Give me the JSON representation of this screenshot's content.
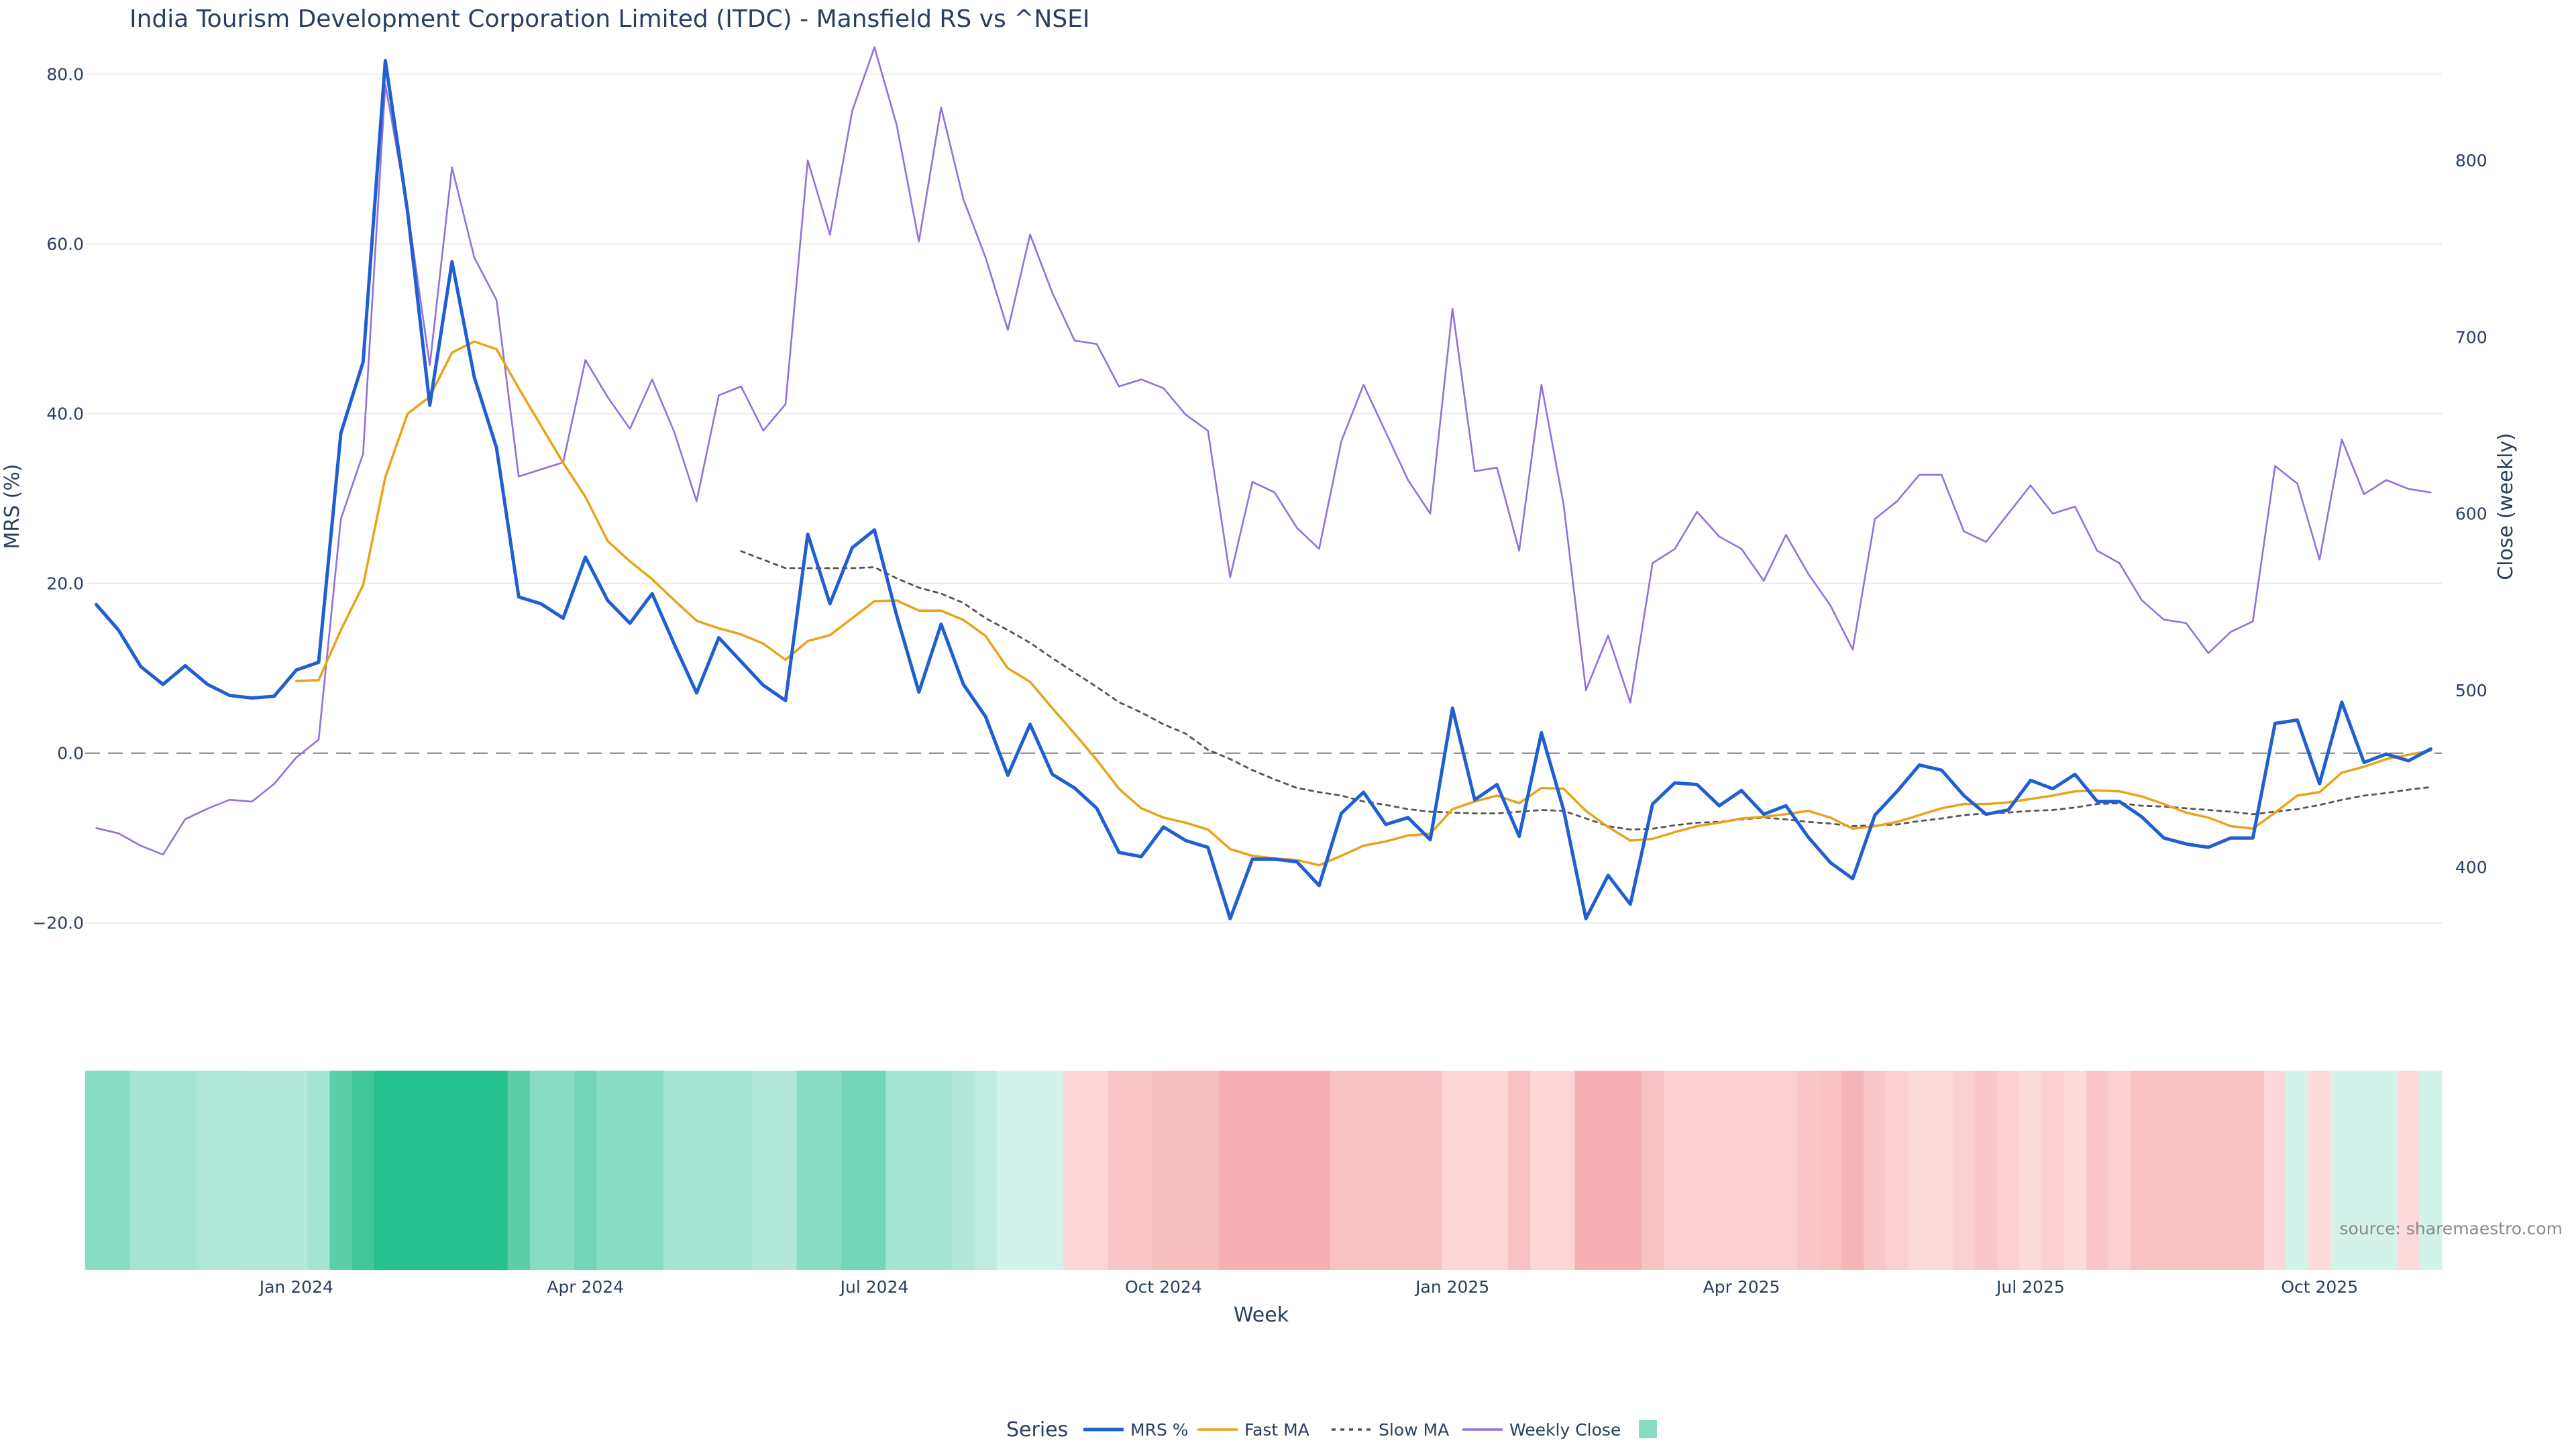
{
  "chart_data": {
    "type": "line",
    "title": "India Tourism Development Corporation Limited (ITDC) - Mansfield RS vs ^NSEI",
    "xlabel": "Week",
    "ylabel": "MRS (%)",
    "y2label": "Close (weekly)",
    "source": "source: sharemaestro.com",
    "ylim": [
      -23.5,
      84.0
    ],
    "y2lim": [
      351.5,
      868.0
    ],
    "y_ticks": [
      80.0,
      60.0,
      40.0,
      20.0,
      0.0,
      -20.0
    ],
    "y_tick_labels": [
      "80.0",
      "60.0",
      "40.0",
      "20.0",
      "0.0",
      "−20.0"
    ],
    "y2_ticks": [
      800,
      700,
      600,
      500,
      400
    ],
    "y2_tick_labels": [
      "800",
      "700",
      "600",
      "500",
      "400"
    ],
    "x_ticks": [
      9,
      22,
      35,
      48,
      61,
      74,
      87,
      100
    ],
    "x_tick_labels": [
      "Jan 2024",
      "Apr 2024",
      "Jul 2024",
      "Oct 2024",
      "Jan 2025",
      "Apr 2025",
      "Jul 2025",
      "Oct 2025"
    ],
    "zero_line": 0,
    "legend_title": "Series",
    "legend_position": "bottom-center",
    "grid": true,
    "series": [
      {
        "name": "MRS %",
        "axis": "left",
        "color": "#1f5fd1",
        "dash": "solid",
        "values": [
          17.5,
          14.5,
          10.2,
          8.1,
          10.3,
          8.1,
          6.8,
          6.5,
          6.7,
          9.8,
          10.7,
          37.7,
          46.1,
          81.6,
          63.8,
          41.0,
          57.9,
          44.3,
          36.0,
          18.4,
          17.6,
          15.9,
          23.1,
          18.0,
          15.3,
          18.8,
          12.8,
          7.1,
          13.6,
          10.8,
          8.0,
          6.2,
          25.8,
          17.6,
          24.2,
          26.3,
          16.2,
          7.2,
          15.2,
          8.1,
          4.3,
          -2.6,
          3.4,
          -2.5,
          -4.1,
          -6.5,
          -11.7,
          -12.2,
          -8.7,
          -10.3,
          -11.1,
          -19.5,
          -12.5,
          -12.5,
          -12.8,
          -15.6,
          -7.1,
          -4.6,
          -8.4,
          -7.6,
          -10.2,
          5.3,
          -5.5,
          -3.7,
          -9.8,
          2.4,
          -6.7,
          -19.5,
          -14.4,
          -17.8,
          -6.0,
          -3.5,
          -3.7,
          -6.2,
          -4.4,
          -7.2,
          -6.2,
          -9.9,
          -12.9,
          -14.8,
          -7.3,
          -4.5,
          -1.4,
          -2.0,
          -5.0,
          -7.2,
          -6.7,
          -3.2,
          -4.2,
          -2.5,
          -5.7,
          -5.7,
          -7.5,
          -10.0,
          -10.7,
          -11.1,
          -10.0,
          -10.0,
          3.5,
          3.9,
          -3.6,
          6.0,
          -1.1,
          -0.1,
          -0.9,
          0.5
        ]
      },
      {
        "name": "Fast MA",
        "axis": "left",
        "color": "#e8a317",
        "dash": "solid",
        "values": [
          null,
          null,
          null,
          null,
          null,
          null,
          null,
          null,
          null,
          8.5,
          8.6,
          14.5,
          19.8,
          32.5,
          40.0,
          42.0,
          47.2,
          48.5,
          47.6,
          43.0,
          38.6,
          34.2,
          30.2,
          25.0,
          22.6,
          20.5,
          18.0,
          15.6,
          14.7,
          14.0,
          12.9,
          11.0,
          13.2,
          13.9,
          15.9,
          17.9,
          18.0,
          16.8,
          16.8,
          15.7,
          13.8,
          10.0,
          8.4,
          5.3,
          2.3,
          -0.8,
          -4.2,
          -6.5,
          -7.6,
          -8.2,
          -9.0,
          -11.3,
          -12.1,
          -12.4,
          -12.6,
          -13.2,
          -12.1,
          -10.9,
          -10.4,
          -9.7,
          -9.5,
          -6.6,
          -5.7,
          -5.0,
          -5.9,
          -4.1,
          -4.2,
          -6.8,
          -8.7,
          -10.3,
          -10.1,
          -9.3,
          -8.6,
          -8.2,
          -7.7,
          -7.5,
          -7.2,
          -6.8,
          -7.6,
          -8.9,
          -8.6,
          -8.1,
          -7.3,
          -6.5,
          -6.0,
          -6.0,
          -5.8,
          -5.4,
          -5.0,
          -4.5,
          -4.4,
          -4.5,
          -5.1,
          -6.0,
          -7.0,
          -7.6,
          -8.6,
          -8.9,
          -7.0,
          -5.0,
          -4.6,
          -2.3,
          -1.6,
          -0.7,
          -0.2,
          0.3
        ]
      },
      {
        "name": "Slow MA",
        "axis": "left",
        "color": "#555555",
        "dash": "dot",
        "values": [
          null,
          null,
          null,
          null,
          null,
          null,
          null,
          null,
          null,
          null,
          null,
          null,
          null,
          null,
          null,
          null,
          null,
          null,
          null,
          null,
          null,
          null,
          null,
          null,
          null,
          null,
          null,
          null,
          null,
          23.8,
          22.8,
          21.8,
          21.8,
          21.8,
          21.8,
          21.9,
          20.6,
          19.5,
          18.8,
          17.7,
          15.9,
          14.5,
          13.0,
          11.2,
          9.5,
          7.8,
          6.0,
          4.8,
          3.4,
          2.3,
          0.4,
          -0.7,
          -2.0,
          -3.1,
          -4.1,
          -4.6,
          -5.0,
          -5.7,
          -6.1,
          -6.6,
          -6.9,
          -7.0,
          -7.1,
          -7.1,
          -6.9,
          -6.7,
          -6.8,
          -7.7,
          -8.6,
          -9.0,
          -8.9,
          -8.5,
          -8.2,
          -8.1,
          -7.8,
          -7.6,
          -7.8,
          -8.1,
          -8.3,
          -8.6,
          -8.5,
          -8.4,
          -8.0,
          -7.7,
          -7.3,
          -7.1,
          -7.0,
          -6.8,
          -6.7,
          -6.4,
          -6.0,
          -5.9,
          -6.2,
          -6.3,
          -6.5,
          -6.7,
          -6.9,
          -7.2,
          -6.9,
          -6.6,
          -6.1,
          -5.5,
          -5.0,
          -4.7,
          -4.3,
          -4.0
        ]
      },
      {
        "name": "Weekly Close",
        "axis": "right",
        "color": "#9370db",
        "dash": "solid",
        "values": [
          422,
          419,
          412,
          407,
          427,
          433,
          438,
          437,
          447,
          462,
          472,
          597,
          634,
          843,
          772,
          684,
          796,
          745,
          721,
          621,
          625,
          629,
          687,
          666,
          648,
          676,
          646,
          607,
          667,
          672,
          647,
          662,
          800,
          758,
          828,
          864,
          820,
          754,
          830,
          778,
          745,
          704,
          758,
          725,
          698,
          696,
          672,
          676,
          671,
          656,
          647,
          564,
          618,
          612,
          592,
          580,
          641,
          673,
          646,
          619,
          600,
          716,
          624,
          626,
          579,
          673,
          605,
          500,
          531,
          493,
          572,
          580,
          601,
          587,
          580,
          562,
          588,
          566,
          548,
          523,
          597,
          607,
          622,
          622,
          590,
          584,
          600,
          616,
          600,
          604,
          579,
          572,
          551,
          540,
          538,
          521,
          533,
          539,
          627,
          617,
          574,
          642,
          611,
          619,
          614,
          612
        ]
      }
    ],
    "heatmap": {
      "colors": [
        "#88dcc4",
        "#88dcc4",
        "#a4e4d2",
        "#a4e4d2",
        "#a4e4d2",
        "#aee7d7",
        "#aee7d7",
        "#b4e9da",
        "#b4e9da",
        "#b4e9da",
        "#a4e4d2",
        "#5dcfa8",
        "#3fc89a",
        "#26c18e",
        "#26c18e",
        "#26c18e",
        "#26c18e",
        "#26c18e",
        "#26c18e",
        "#5dcfa8",
        "#88dcc4",
        "#88dcc4",
        "#72d5b6",
        "#88dcc4",
        "#88dcc4",
        "#88dcc4",
        "#a4e4d2",
        "#a4e4d2",
        "#a4e4d2",
        "#a4e4d2",
        "#b4e9da",
        "#b4e9da",
        "#88dcc4",
        "#88dcc4",
        "#72d5b6",
        "#72d5b6",
        "#a4e4d2",
        "#a4e4d2",
        "#a4e4d2",
        "#b4e9da",
        "#bfece0",
        "#d3f3ea",
        "#d3f3ea",
        "#d3f3ea",
        "#fcd6d6",
        "#fcd6d6",
        "#f9c7c9",
        "#f9c7c9",
        "#f7bec0",
        "#f7bec0",
        "#f7bec0",
        "#f6b0b4",
        "#f6b0b4",
        "#f6b0b4",
        "#f6b0b4",
        "#f6b0b4",
        "#f8c2c4",
        "#f8c2c4",
        "#f8c2c4",
        "#f8c2c4",
        "#f8c2c4",
        "#fcd6d6",
        "#fcd6d6",
        "#fcd6d6",
        "#f8c2c4",
        "#fcd6d6",
        "#fcd6d6",
        "#f6b0b4",
        "#f6b0b4",
        "#f6b0b4",
        "#f8c2c4",
        "#fad0d2",
        "#fad0d2",
        "#fad0d2",
        "#fad0d2",
        "#fad0d2",
        "#fad0d2",
        "#f9c7c9",
        "#f8c2c4",
        "#f6b6b9",
        "#f9c7c9",
        "#fad0d2",
        "#fcdadb",
        "#fcdadb",
        "#fad0d2",
        "#f9c7c9",
        "#fad0d2",
        "#fcdadb",
        "#fad0d2",
        "#fcdadb",
        "#f9c7c9",
        "#fad0d2",
        "#f8c2c4",
        "#f8c2c4",
        "#f8c2c4",
        "#f8c2c4",
        "#f8c2c4",
        "#f8c2c4",
        "#fcdadb",
        "#d3f3ea",
        "#fcdadb",
        "#d3f3ea",
        "#d3f3ea",
        "#d3f3ea",
        "#fcdadb",
        "#d3f3ea"
      ]
    }
  }
}
